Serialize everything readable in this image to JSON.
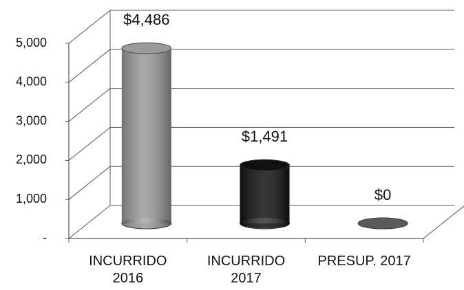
{
  "chart_data": {
    "type": "bar3d",
    "categories": [
      "INCURRIDO 2016",
      "INCURRIDO 2017",
      "PRESUP. 2017"
    ],
    "values": [
      4486,
      1491,
      0
    ],
    "value_labels": [
      "$4,486",
      "$1,491",
      "$0"
    ],
    "colors": [
      "#9a9a9a",
      "#111111",
      "#5a5a5a"
    ],
    "ylim": [
      0,
      5000
    ],
    "yticks": [
      {
        "value": 0,
        "label": "-"
      },
      {
        "value": 1000,
        "label": "1,000"
      },
      {
        "value": 2000,
        "label": "2,000"
      },
      {
        "value": 3000,
        "label": "3,000"
      },
      {
        "value": 4000,
        "label": "4,000"
      },
      {
        "value": 5000,
        "label": "5,000"
      }
    ],
    "grid": true
  }
}
